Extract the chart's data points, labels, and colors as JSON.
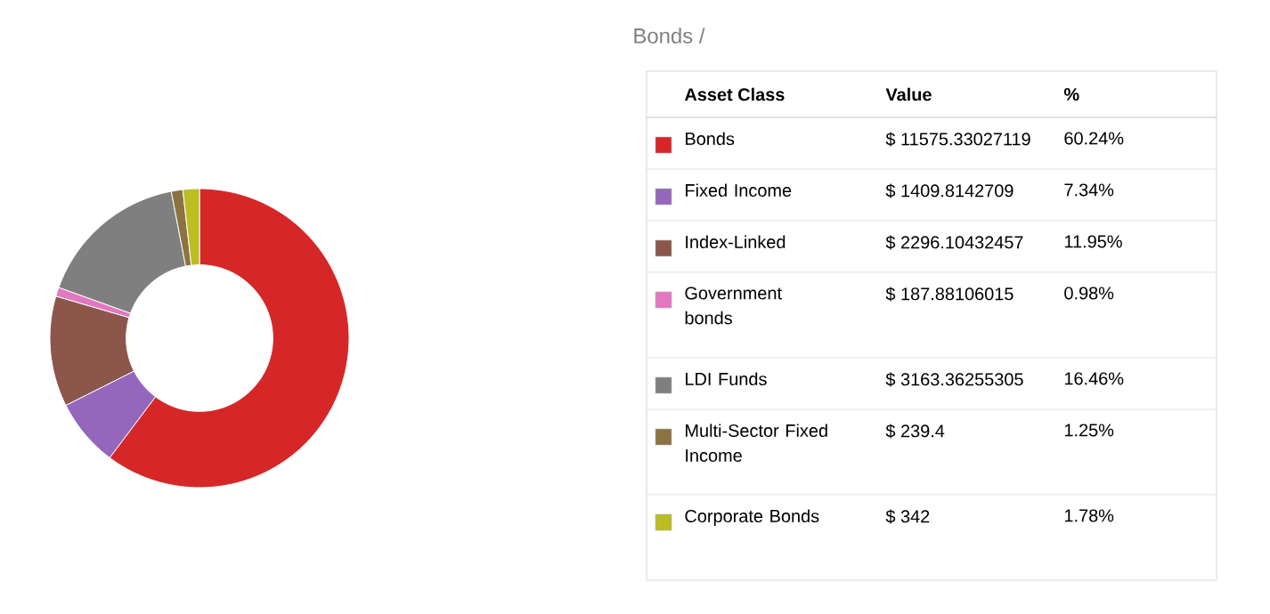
{
  "chart_data": {
    "type": "donut",
    "title": "Bonds /",
    "legend_title": "Asset Class",
    "legend": "right",
    "categories": [
      "Bonds",
      "Fixed Income",
      "Index-Linked",
      "Government bonds",
      "LDI Funds",
      "Multi-Sector Fixed Income",
      "Corporate Bonds"
    ],
    "values": [
      11575.33027119,
      1409.8142709,
      2296.10432457,
      187.88106015,
      3163.36255305,
      239.4,
      342
    ],
    "colors": [
      "#d62728",
      "#9467bd",
      "#8c564b",
      "#e377c2",
      "#7f7f7f",
      "#8b7442",
      "#bcbd22"
    ],
    "value_labels": [
      "$ 11575.33027119",
      "$ 1409.8142709",
      "$ 2296.10432457",
      "$ 187.88106015",
      "$ 3163.36255305",
      "$ 239.4",
      "$ 342"
    ],
    "annotations": [
      "Value",
      "%",
      "60.24%",
      "7.34%",
      "11.95%",
      "0.98%",
      "16.46%",
      "1.25%",
      "1.78%"
    ]
  }
}
